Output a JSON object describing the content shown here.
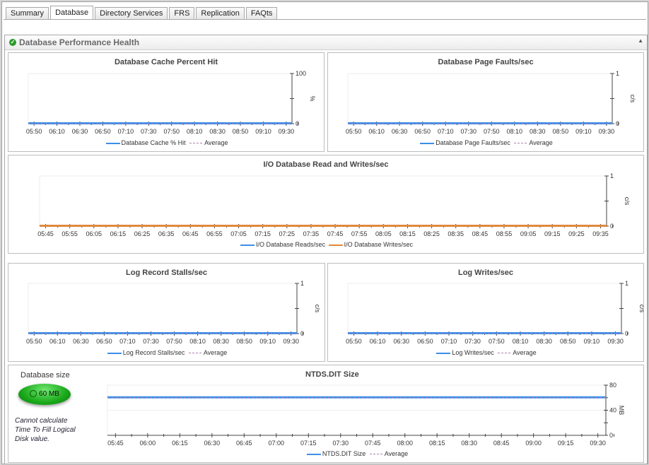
{
  "tabs": [
    "Summary",
    "Database",
    "Directory Services",
    "FRS",
    "Replication",
    "FAQts"
  ],
  "active_tab": "Database",
  "panel": {
    "title": "Database Performance Health",
    "status_icon": "check-circle-icon"
  },
  "colors": {
    "series_blue": "#3c8ee8",
    "series_orange": "#e08a3c",
    "average": "#b080b0",
    "status_green": "#2a9a2a"
  },
  "database_size": {
    "label": "Database size",
    "value": "60 MB",
    "note": "Cannot calculate Time To Fill Logical Disk value."
  },
  "chart_data": [
    {
      "id": "cache",
      "type": "line",
      "title": "Database Cache Percent Hit",
      "ylabel": "%",
      "ylim": [
        0,
        100
      ],
      "yticks": [
        "0",
        "100"
      ],
      "x": [
        "05:50",
        "06:10",
        "06:30",
        "06:50",
        "07:10",
        "07:30",
        "07:50",
        "08:10",
        "08:30",
        "08:50",
        "09:10",
        "09:30"
      ],
      "series": [
        {
          "name": "Database Cache % Hit",
          "values": [
            0,
            0,
            0,
            0,
            0,
            0,
            0,
            0,
            0,
            0,
            0,
            0
          ]
        },
        {
          "name": "Average",
          "values": [
            0,
            0,
            0,
            0,
            0,
            0,
            0,
            0,
            0,
            0,
            0,
            0
          ],
          "dashed": true
        }
      ]
    },
    {
      "id": "faults",
      "type": "line",
      "title": "Database Page Faults/sec",
      "ylabel": "c/s",
      "ylim": [
        0,
        1
      ],
      "yticks": [
        "0",
        "1"
      ],
      "x": [
        "05:50",
        "06:10",
        "06:30",
        "06:50",
        "07:10",
        "07:30",
        "07:50",
        "08:10",
        "08:30",
        "08:50",
        "09:10",
        "09:30"
      ],
      "series": [
        {
          "name": "Database Page Faults/sec",
          "values": [
            0,
            0,
            0,
            0,
            0,
            0,
            0,
            0,
            0,
            0,
            0,
            0
          ]
        },
        {
          "name": "Average",
          "values": [
            0,
            0,
            0,
            0,
            0,
            0,
            0,
            0,
            0,
            0,
            0,
            0
          ],
          "dashed": true
        }
      ]
    },
    {
      "id": "io",
      "type": "line",
      "title": "I/O Database Read and Writes/sec",
      "ylabel": "c/s",
      "ylim": [
        0,
        1
      ],
      "yticks": [
        "0",
        "1"
      ],
      "x": [
        "05:45",
        "05:55",
        "06:05",
        "06:15",
        "06:25",
        "06:35",
        "06:45",
        "06:55",
        "07:05",
        "07:15",
        "07:25",
        "07:35",
        "07:45",
        "07:55",
        "08:05",
        "08:15",
        "08:25",
        "08:35",
        "08:45",
        "08:55",
        "09:05",
        "09:15",
        "09:25",
        "09:35"
      ],
      "series": [
        {
          "name": "I/O Database Reads/sec",
          "values": [
            0,
            0,
            0,
            0,
            0,
            0,
            0,
            0,
            0,
            0,
            0,
            0,
            0,
            0,
            0,
            0,
            0,
            0,
            0,
            0,
            0,
            0,
            0,
            0
          ]
        },
        {
          "name": "I/O Database Writes/sec",
          "values": [
            0,
            0,
            0,
            0,
            0,
            0,
            0,
            0,
            0,
            0,
            0,
            0,
            0,
            0,
            0,
            0,
            0,
            0,
            0,
            0,
            0,
            0,
            0,
            0
          ],
          "color": "orange"
        }
      ]
    },
    {
      "id": "stalls",
      "type": "line",
      "title": "Log Record Stalls/sec",
      "ylabel": "c/s",
      "ylim": [
        0,
        1
      ],
      "yticks": [
        "0",
        "1"
      ],
      "x": [
        "05:50",
        "06:10",
        "06:30",
        "06:50",
        "07:10",
        "07:30",
        "07:50",
        "08:10",
        "08:30",
        "08:50",
        "09:10",
        "09:30"
      ],
      "series": [
        {
          "name": "Log Record Stalls/sec",
          "values": [
            0,
            0,
            0,
            0,
            0,
            0,
            0,
            0,
            0,
            0,
            0,
            0
          ]
        },
        {
          "name": "Average",
          "values": [
            0,
            0,
            0,
            0,
            0,
            0,
            0,
            0,
            0,
            0,
            0,
            0
          ],
          "dashed": true
        }
      ]
    },
    {
      "id": "logwrites",
      "type": "line",
      "title": "Log Writes/sec",
      "ylabel": "c/s",
      "ylim": [
        0,
        1
      ],
      "yticks": [
        "0",
        "1"
      ],
      "x": [
        "05:50",
        "06:10",
        "06:30",
        "06:50",
        "07:10",
        "07:30",
        "07:50",
        "08:10",
        "08:30",
        "08:50",
        "09:10",
        "09:30"
      ],
      "series": [
        {
          "name": "Log Writes/sec",
          "values": [
            0,
            0,
            0,
            0,
            0,
            0,
            0,
            0,
            0,
            0,
            0,
            0
          ]
        },
        {
          "name": "Average",
          "values": [
            0,
            0,
            0,
            0,
            0,
            0,
            0,
            0,
            0,
            0,
            0,
            0
          ],
          "dashed": true
        }
      ]
    },
    {
      "id": "ntds",
      "type": "line",
      "title": "NTDS.DIT Size",
      "ylabel": "MB",
      "ylim": [
        0,
        80
      ],
      "yticks": [
        "0",
        "40",
        "80"
      ],
      "x": [
        "05:45",
        "06:00",
        "06:15",
        "06:30",
        "06:45",
        "07:00",
        "07:15",
        "07:30",
        "07:45",
        "08:00",
        "08:15",
        "08:30",
        "08:45",
        "09:00",
        "09:15",
        "09:30"
      ],
      "series": [
        {
          "name": "NTDS.DIT Size",
          "values": [
            60,
            60,
            60,
            60,
            60,
            60,
            60,
            60,
            60,
            60,
            60,
            60,
            60,
            60,
            60,
            60
          ]
        },
        {
          "name": "Average",
          "values": [
            60,
            60,
            60,
            60,
            60,
            60,
            60,
            60,
            60,
            60,
            60,
            60,
            60,
            60,
            60,
            60
          ],
          "dashed": true
        }
      ]
    }
  ]
}
